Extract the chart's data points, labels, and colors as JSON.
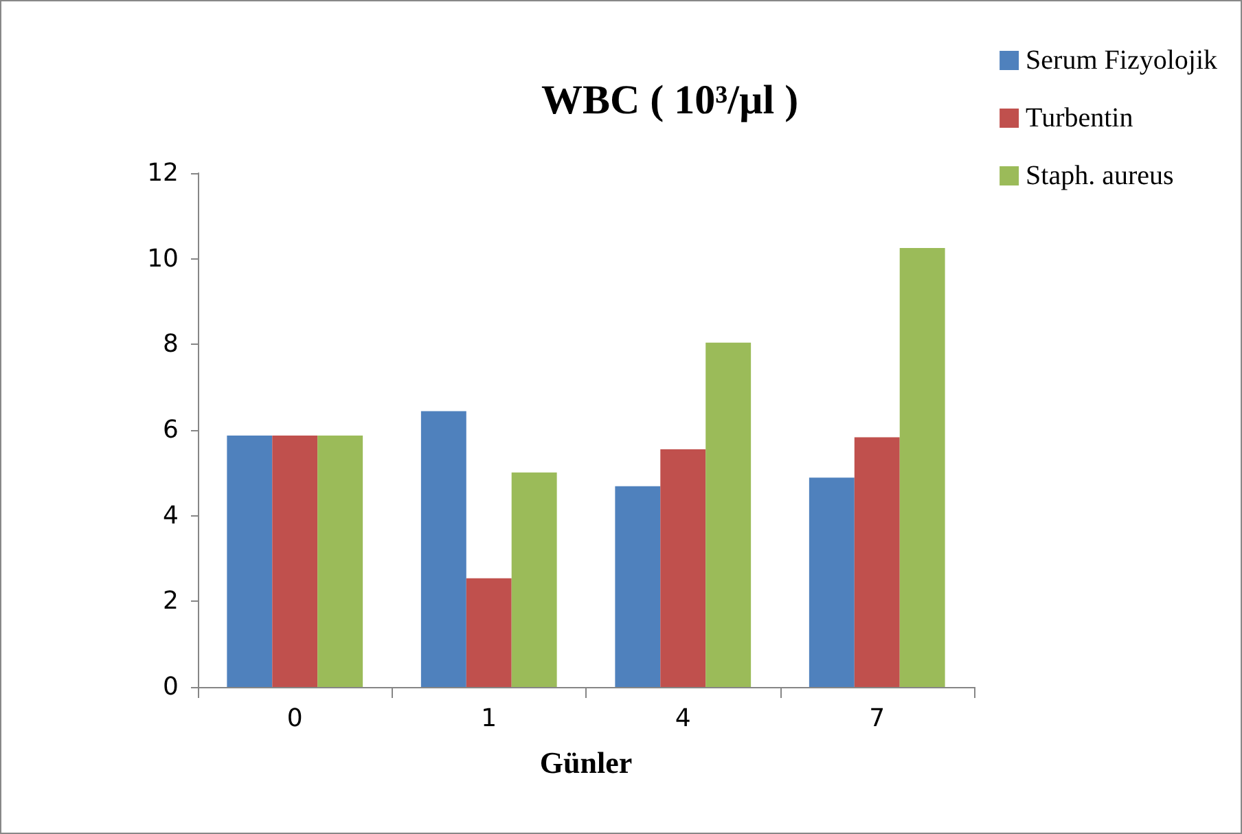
{
  "chart_data": {
    "type": "bar",
    "title": "WBC ( 10³/µl )",
    "xlabel": "Günler",
    "categories": [
      "0",
      "1",
      "4",
      "7"
    ],
    "series": [
      {
        "name": "Serum Fizyolojik",
        "color": "#4f81bd",
        "values": [
          5.87,
          6.44,
          4.69,
          4.89
        ]
      },
      {
        "name": "Turbentin",
        "color": "#c0504d",
        "values": [
          5.87,
          2.54,
          5.55,
          5.83
        ]
      },
      {
        "name": "Staph. aureus",
        "color": "#9bbb59",
        "values": [
          5.87,
          5.01,
          8.04,
          10.25
        ]
      }
    ],
    "ylim": [
      0,
      12
    ],
    "yticks": [
      0,
      2,
      4,
      6,
      8,
      10,
      12
    ],
    "grid": false,
    "legend": "top right"
  }
}
